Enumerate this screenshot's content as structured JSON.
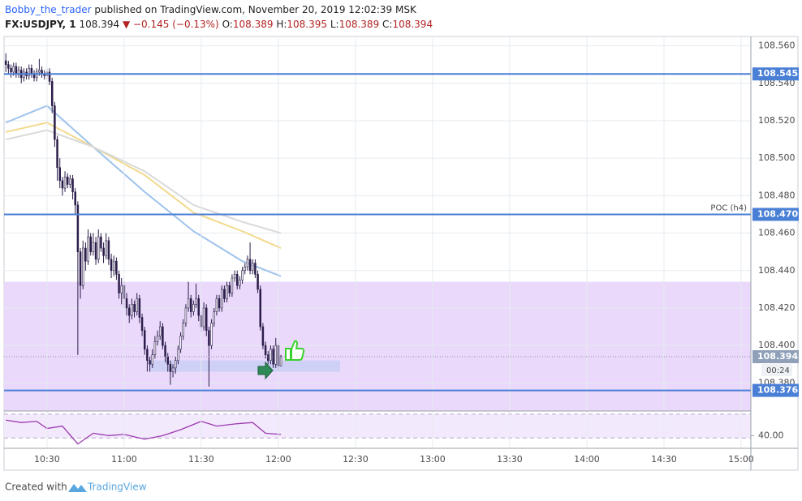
{
  "header": {
    "author": "Bobby_the_trader",
    "published": "published on TradingView.com, November 20, 2019 12:02:39 MSK",
    "symbol": "FX:USDJPY, 1",
    "price": "108.394",
    "change": "▼ −0.145 (−0.13%)",
    "o_label": "O:",
    "o": "108.389",
    "h_label": "H:",
    "h": "108.395",
    "l_label": "L:",
    "l": "108.389",
    "c_label": "C:",
    "c": "108.394"
  },
  "footer": {
    "created": "Created with",
    "brand": "TradingView"
  },
  "chart_data": {
    "type": "candlestick",
    "xlim": [
      613.3,
      903.8
    ],
    "ylim": [
      108.365,
      108.565
    ],
    "xticks": [
      {
        "value": 630,
        "label": "10:30"
      },
      {
        "value": 660,
        "label": "11:00"
      },
      {
        "value": 690,
        "label": "11:30"
      },
      {
        "value": 720,
        "label": "12:00"
      },
      {
        "value": 750,
        "label": "12:30"
      },
      {
        "value": 780,
        "label": "13:00"
      },
      {
        "value": 810,
        "label": "13:30"
      },
      {
        "value": 840,
        "label": "14:00"
      },
      {
        "value": 870,
        "label": "14:30"
      },
      {
        "value": 900,
        "label": "15:00"
      }
    ],
    "yticks": [
      {
        "value": 108.38,
        "label": "108.380"
      },
      {
        "value": 108.4,
        "label": "108.400"
      },
      {
        "value": 108.42,
        "label": "108.420"
      },
      {
        "value": 108.44,
        "label": "108.440"
      },
      {
        "value": 108.46,
        "label": "108.460"
      },
      {
        "value": 108.48,
        "label": "108.480"
      },
      {
        "value": 108.5,
        "label": "108.500"
      },
      {
        "value": 108.52,
        "label": "108.520"
      },
      {
        "value": 108.54,
        "label": "108.540"
      },
      {
        "value": 108.56,
        "label": "108.560"
      }
    ],
    "grid": true,
    "candle_color": "#2b1d4a",
    "x": [
      614,
      615,
      616,
      617,
      618,
      619,
      620,
      621,
      622,
      623,
      624,
      625,
      626,
      627,
      628,
      629,
      630,
      631,
      632,
      633,
      634,
      635,
      636,
      637,
      638,
      639,
      640,
      641,
      642,
      643,
      644,
      645,
      646,
      647,
      648,
      649,
      650,
      651,
      652,
      653,
      654,
      655,
      656,
      657,
      658,
      659,
      660,
      661,
      662,
      663,
      664,
      665,
      666,
      667,
      668,
      669,
      670,
      671,
      672,
      673,
      674,
      675,
      676,
      677,
      678,
      679,
      680,
      681,
      682,
      683,
      684,
      685,
      686,
      687,
      688,
      689,
      690,
      691,
      692,
      693,
      694,
      695,
      696,
      697,
      698,
      699,
      700,
      701,
      702,
      703,
      704,
      705,
      706,
      707,
      708,
      709,
      710,
      711,
      712,
      713,
      714,
      715,
      716,
      717,
      718,
      719,
      720,
      721
    ],
    "ohlc": [
      [
        108.552,
        108.556,
        108.546,
        108.55
      ],
      [
        108.55,
        108.552,
        108.545,
        108.548
      ],
      [
        108.548,
        108.55,
        108.543,
        108.546
      ],
      [
        108.546,
        108.551,
        108.544,
        108.549
      ],
      [
        108.549,
        108.551,
        108.543,
        108.545
      ],
      [
        108.545,
        108.549,
        108.543,
        108.547
      ],
      [
        108.547,
        108.549,
        108.54,
        108.543
      ],
      [
        108.543,
        108.548,
        108.541,
        108.546
      ],
      [
        108.546,
        108.548,
        108.542,
        108.544
      ],
      [
        108.544,
        108.55,
        108.542,
        108.548
      ],
      [
        108.548,
        108.55,
        108.543,
        108.545
      ],
      [
        108.545,
        108.547,
        108.541,
        108.543
      ],
      [
        108.543,
        108.548,
        108.541,
        108.546
      ],
      [
        108.546,
        108.553,
        108.544,
        108.547
      ],
      [
        108.547,
        108.549,
        108.543,
        108.545
      ],
      [
        108.545,
        108.547,
        108.542,
        108.544
      ],
      [
        108.544,
        108.548,
        108.542,
        108.546
      ],
      [
        108.546,
        108.548,
        108.539,
        108.541
      ],
      [
        108.541,
        108.543,
        108.524,
        108.528
      ],
      [
        108.528,
        108.53,
        108.506,
        108.51
      ],
      [
        108.51,
        108.512,
        108.488,
        108.495
      ],
      [
        108.495,
        108.5,
        108.484,
        108.488
      ],
      [
        108.488,
        108.49,
        108.48,
        108.484
      ],
      [
        108.484,
        108.493,
        108.482,
        108.49
      ],
      [
        108.49,
        108.492,
        108.484,
        108.486
      ],
      [
        108.486,
        108.491,
        108.484,
        108.489
      ],
      [
        108.489,
        108.491,
        108.478,
        108.482
      ],
      [
        108.482,
        108.484,
        108.47,
        108.475
      ],
      [
        108.475,
        108.477,
        108.395,
        108.45
      ],
      [
        108.45,
        108.452,
        108.425,
        108.432
      ],
      [
        108.432,
        108.456,
        108.43,
        108.452
      ],
      [
        108.452,
        108.455,
        108.44,
        108.445
      ],
      [
        108.445,
        108.462,
        108.443,
        108.458
      ],
      [
        108.458,
        108.46,
        108.448,
        108.45
      ],
      [
        108.45,
        108.46,
        108.448,
        108.455
      ],
      [
        108.455,
        108.458,
        108.443,
        108.446
      ],
      [
        108.446,
        108.462,
        108.444,
        108.458
      ],
      [
        108.458,
        108.46,
        108.45,
        108.452
      ],
      [
        108.452,
        108.455,
        108.444,
        108.448
      ],
      [
        108.448,
        108.46,
        108.446,
        108.456
      ],
      [
        108.456,
        108.458,
        108.443,
        108.446
      ],
      [
        108.446,
        108.449,
        108.436,
        108.44
      ],
      [
        108.44,
        108.448,
        108.437,
        108.445
      ],
      [
        108.445,
        108.447,
        108.435,
        108.438
      ],
      [
        108.438,
        108.44,
        108.425,
        108.428
      ],
      [
        108.428,
        108.436,
        108.422,
        108.432
      ],
      [
        108.432,
        108.434,
        108.42,
        108.425
      ],
      [
        108.425,
        108.428,
        108.416,
        108.42
      ],
      [
        108.42,
        108.422,
        108.412,
        108.416
      ],
      [
        108.416,
        108.425,
        108.414,
        108.422
      ],
      [
        108.422,
        108.424,
        108.415,
        108.418
      ],
      [
        108.418,
        108.428,
        108.416,
        108.425
      ],
      [
        108.425,
        108.427,
        108.412,
        108.415
      ],
      [
        108.415,
        108.417,
        108.405,
        108.408
      ],
      [
        108.408,
        108.41,
        108.395,
        108.398
      ],
      [
        108.398,
        108.4,
        108.386,
        108.392
      ],
      [
        108.392,
        108.394,
        108.386,
        108.39
      ],
      [
        108.39,
        108.398,
        108.388,
        108.395
      ],
      [
        108.395,
        108.405,
        108.393,
        108.402
      ],
      [
        108.402,
        108.408,
        108.4,
        108.405
      ],
      [
        108.405,
        108.413,
        108.403,
        108.41
      ],
      [
        108.41,
        108.412,
        108.398,
        108.4
      ],
      [
        108.4,
        108.402,
        108.391,
        108.394
      ],
      [
        108.394,
        108.396,
        108.386,
        108.39
      ],
      [
        108.39,
        108.392,
        108.379,
        108.386
      ],
      [
        108.386,
        108.39,
        108.383,
        108.388
      ],
      [
        108.388,
        108.394,
        108.385,
        108.392
      ],
      [
        108.392,
        108.4,
        108.39,
        108.398
      ],
      [
        108.398,
        108.407,
        108.396,
        108.405
      ],
      [
        108.405,
        108.414,
        108.403,
        108.412
      ],
      [
        108.412,
        108.422,
        108.41,
        108.42
      ],
      [
        108.42,
        108.434,
        108.418,
        108.425
      ],
      [
        108.425,
        108.427,
        108.415,
        108.418
      ],
      [
        108.418,
        108.424,
        108.416,
        108.422
      ],
      [
        108.422,
        108.433,
        108.42,
        108.425
      ],
      [
        108.425,
        108.427,
        108.413,
        108.416
      ],
      [
        108.416,
        108.418,
        108.407,
        108.41
      ],
      [
        108.41,
        108.423,
        108.408,
        108.42
      ],
      [
        108.42,
        108.422,
        108.405,
        108.408
      ],
      [
        108.408,
        108.41,
        108.378,
        108.4
      ],
      [
        108.4,
        108.414,
        108.398,
        108.412
      ],
      [
        108.412,
        108.42,
        108.41,
        108.418
      ],
      [
        108.418,
        108.427,
        108.416,
        108.425
      ],
      [
        108.425,
        108.427,
        108.418,
        108.42
      ],
      [
        108.42,
        108.432,
        108.418,
        108.43
      ],
      [
        108.43,
        108.432,
        108.423,
        108.425
      ],
      [
        108.425,
        108.434,
        108.423,
        108.432
      ],
      [
        108.432,
        108.434,
        108.426,
        108.428
      ],
      [
        108.428,
        108.438,
        108.426,
        108.436
      ],
      [
        108.436,
        108.44,
        108.434,
        108.438
      ],
      [
        108.438,
        108.44,
        108.43,
        108.432
      ],
      [
        108.432,
        108.437,
        108.43,
        108.435
      ],
      [
        108.435,
        108.442,
        108.433,
        108.44
      ],
      [
        108.44,
        108.444,
        108.438,
        108.442
      ],
      [
        108.442,
        108.448,
        108.44,
        108.446
      ],
      [
        108.446,
        108.455,
        108.438,
        108.44
      ],
      [
        108.44,
        108.446,
        108.438,
        108.444
      ],
      [
        108.444,
        108.446,
        108.436,
        108.438
      ],
      [
        108.438,
        108.44,
        108.428,
        108.43
      ],
      [
        108.43,
        108.432,
        108.408,
        108.41
      ],
      [
        108.41,
        108.412,
        108.398,
        108.4
      ],
      [
        108.4,
        108.402,
        108.393,
        108.395
      ],
      [
        108.395,
        108.397,
        108.39,
        108.392
      ],
      [
        108.392,
        108.4,
        108.39,
        108.398
      ],
      [
        108.398,
        108.4,
        108.388,
        108.39
      ],
      [
        108.39,
        108.404,
        108.388,
        108.4
      ],
      [
        108.4,
        108.402,
        108.386,
        108.389
      ],
      [
        108.389,
        108.395,
        108.389,
        108.394
      ]
    ],
    "moving_averages": [
      {
        "color": "#9fc3ec",
        "x": [
          614,
          630,
          648,
          668,
          687,
          706,
          721
        ],
        "values": [
          108.519,
          108.528,
          108.506,
          108.482,
          108.461,
          108.445,
          108.437
        ]
      },
      {
        "color": "#f2d98c",
        "x": [
          614,
          630,
          648,
          668,
          687,
          706,
          721
        ],
        "values": [
          108.514,
          108.519,
          108.506,
          108.491,
          108.471,
          108.461,
          108.452
        ]
      },
      {
        "color": "#d9d9d9",
        "x": [
          614,
          630,
          648,
          668,
          687,
          706,
          721
        ],
        "values": [
          108.51,
          108.515,
          108.506,
          108.493,
          108.475,
          108.466,
          108.46
        ]
      }
    ],
    "levels": [
      108.545,
      {
        "value": 108.47,
        "label": "108.470"
      },
      108.376
    ],
    "level_color": "#4a7fd6",
    "annotation": "POC (h4)",
    "zone": [
      108.434,
      108.365
    ],
    "zone_color": "#ead9fb",
    "highlight": {
      "x": [
        670,
        744
      ],
      "y": [
        108.386,
        108.392
      ],
      "color": "#cfd0f5"
    },
    "last_price": 108.394,
    "countdown": "00:24",
    "indicator": {
      "ylim": [
        30,
        60
      ],
      "yticks": [
        {
          "value": 40,
          "label": "40.00"
        }
      ],
      "levels": [
        58,
        38
      ],
      "color": "#9c3ab0",
      "x": [
        614,
        620,
        626,
        630,
        636,
        642,
        648,
        654,
        660,
        668,
        675,
        682,
        690,
        696,
        704,
        710,
        715,
        721
      ],
      "values": [
        53,
        51,
        52,
        46,
        48,
        33,
        42,
        40,
        41,
        37,
        40,
        45,
        52,
        48,
        50,
        51,
        42,
        41
      ]
    }
  }
}
